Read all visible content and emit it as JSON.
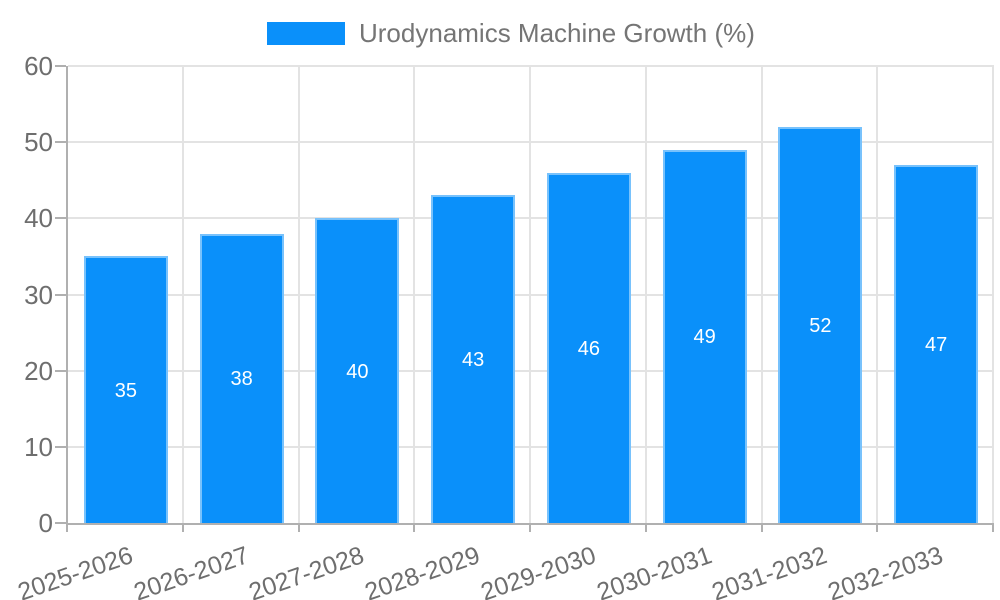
{
  "legend": {
    "label": "Urodynamics Machine Growth (%)"
  },
  "colors": {
    "bar": "#0a90fa",
    "grid": "#e3e3e3",
    "axis": "#b0b0b0",
    "axis_text": "#6e6e6e",
    "legend_text": "#757575",
    "value_label_text": "#ffffff",
    "background": "#ffffff"
  },
  "chart_data": {
    "type": "bar",
    "title": "Urodynamics Machine Growth (%)",
    "categories": [
      "2025-2026",
      "2026-2027",
      "2027-2028",
      "2028-2029",
      "2029-2030",
      "2030-2031",
      "2031-2032",
      "2032-2033"
    ],
    "values": [
      35,
      38,
      40,
      43,
      46,
      49,
      52,
      47
    ],
    "value_labels_shown": [
      35,
      38,
      40,
      43,
      46,
      49,
      52,
      47
    ],
    "xlabel": "",
    "ylabel": "",
    "ylim": [
      0,
      60
    ],
    "yticks": [
      0,
      10,
      20,
      30,
      40,
      50,
      60
    ],
    "grid": true,
    "legend_position": "top-center",
    "value_label_position": "inside-middle",
    "x_tick_label_rotation_deg": -19
  }
}
